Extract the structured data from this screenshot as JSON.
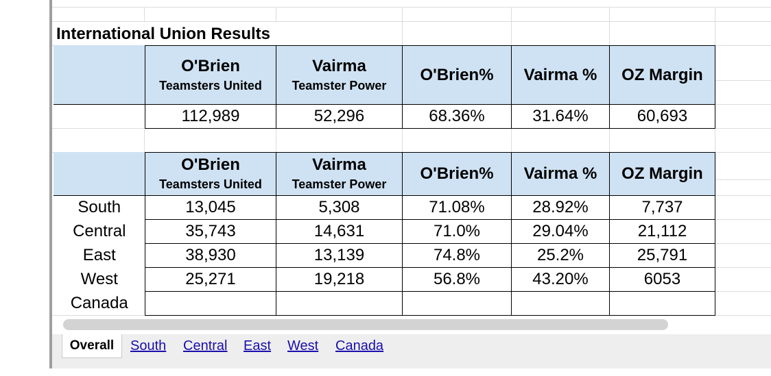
{
  "sheet": {
    "title": "International Union Results",
    "header": {
      "candidate1_name": "O'Brien",
      "candidate1_slate": "Teamsters United",
      "candidate2_name": "Vairma",
      "candidate2_slate": "Teamster Power",
      "pct1": "O'Brien%",
      "pct2": "Vairma %",
      "margin": "OZ Margin"
    },
    "totals": {
      "obrien": "112,989",
      "vairma": "52,296",
      "obrien_pct": "68.36%",
      "vairma_pct": "31.64%",
      "margin": "60,693"
    },
    "regions": [
      {
        "name": "South",
        "obrien": "13,045",
        "vairma": "5,308",
        "obrien_pct": "71.08%",
        "vairma_pct": "28.92%",
        "margin": "7,737"
      },
      {
        "name": "Central",
        "obrien": "35,743",
        "vairma": "14,631",
        "obrien_pct": "71.0%",
        "vairma_pct": "29.04%",
        "margin": "21,112"
      },
      {
        "name": "East",
        "obrien": "38,930",
        "vairma": "13,139",
        "obrien_pct": "74.8%",
        "vairma_pct": "25.2%",
        "margin": "25,791"
      },
      {
        "name": "West",
        "obrien": "25,271",
        "vairma": "19,218",
        "obrien_pct": "56.8%",
        "vairma_pct": "43.20%",
        "margin": "6053"
      },
      {
        "name": "Canada",
        "obrien": "",
        "vairma": "",
        "obrien_pct": "",
        "vairma_pct": "",
        "margin": ""
      }
    ]
  },
  "tabs": {
    "active": "Overall",
    "links": [
      "South",
      "Central",
      "East",
      "West",
      "Canada"
    ]
  },
  "colors": {
    "header_fill": "#cfe2f3",
    "link": "#1a0dab",
    "tabbar": "#eeeeee"
  }
}
